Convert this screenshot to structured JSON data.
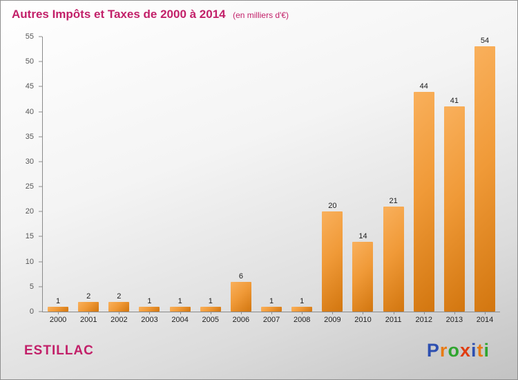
{
  "header": {
    "title": "Autres Impôts et Taxes de 2000 à 2014",
    "subtitle": "(en milliers d'€)"
  },
  "colors": {
    "title": "#c22069",
    "bar_light": "#f9b05c",
    "bar_dark": "#d2760f",
    "axis": "#8a8a8a"
  },
  "chart_data": {
    "type": "bar",
    "title": "Autres Impôts et Taxes de 2000 à 2014",
    "subtitle": "(en milliers d'€)",
    "categories": [
      "2000",
      "2001",
      "2002",
      "2003",
      "2004",
      "2005",
      "2006",
      "2007",
      "2008",
      "2009",
      "2010",
      "2011",
      "2012",
      "2013",
      "2014"
    ],
    "values": [
      1,
      2,
      2,
      1,
      1,
      1,
      6,
      1,
      1,
      20,
      14,
      21,
      44,
      41,
      54
    ],
    "xlabel": "",
    "ylabel": "",
    "ylim": [
      0,
      55
    ],
    "ytick_step": 5,
    "grid": false,
    "legend": "none",
    "value_labels": true
  },
  "footer": {
    "location": "ESTILLAC",
    "logo_letters": [
      {
        "ch": "P",
        "color": "#2d4fb0"
      },
      {
        "ch": "r",
        "color": "#e87a12"
      },
      {
        "ch": "o",
        "color": "#2fa52f"
      },
      {
        "ch": "x",
        "color": "#e03c10"
      },
      {
        "ch": "i",
        "color": "#2d4fb0"
      },
      {
        "ch": "t",
        "color": "#e87a12"
      },
      {
        "ch": "i",
        "color": "#2fa52f"
      }
    ]
  }
}
